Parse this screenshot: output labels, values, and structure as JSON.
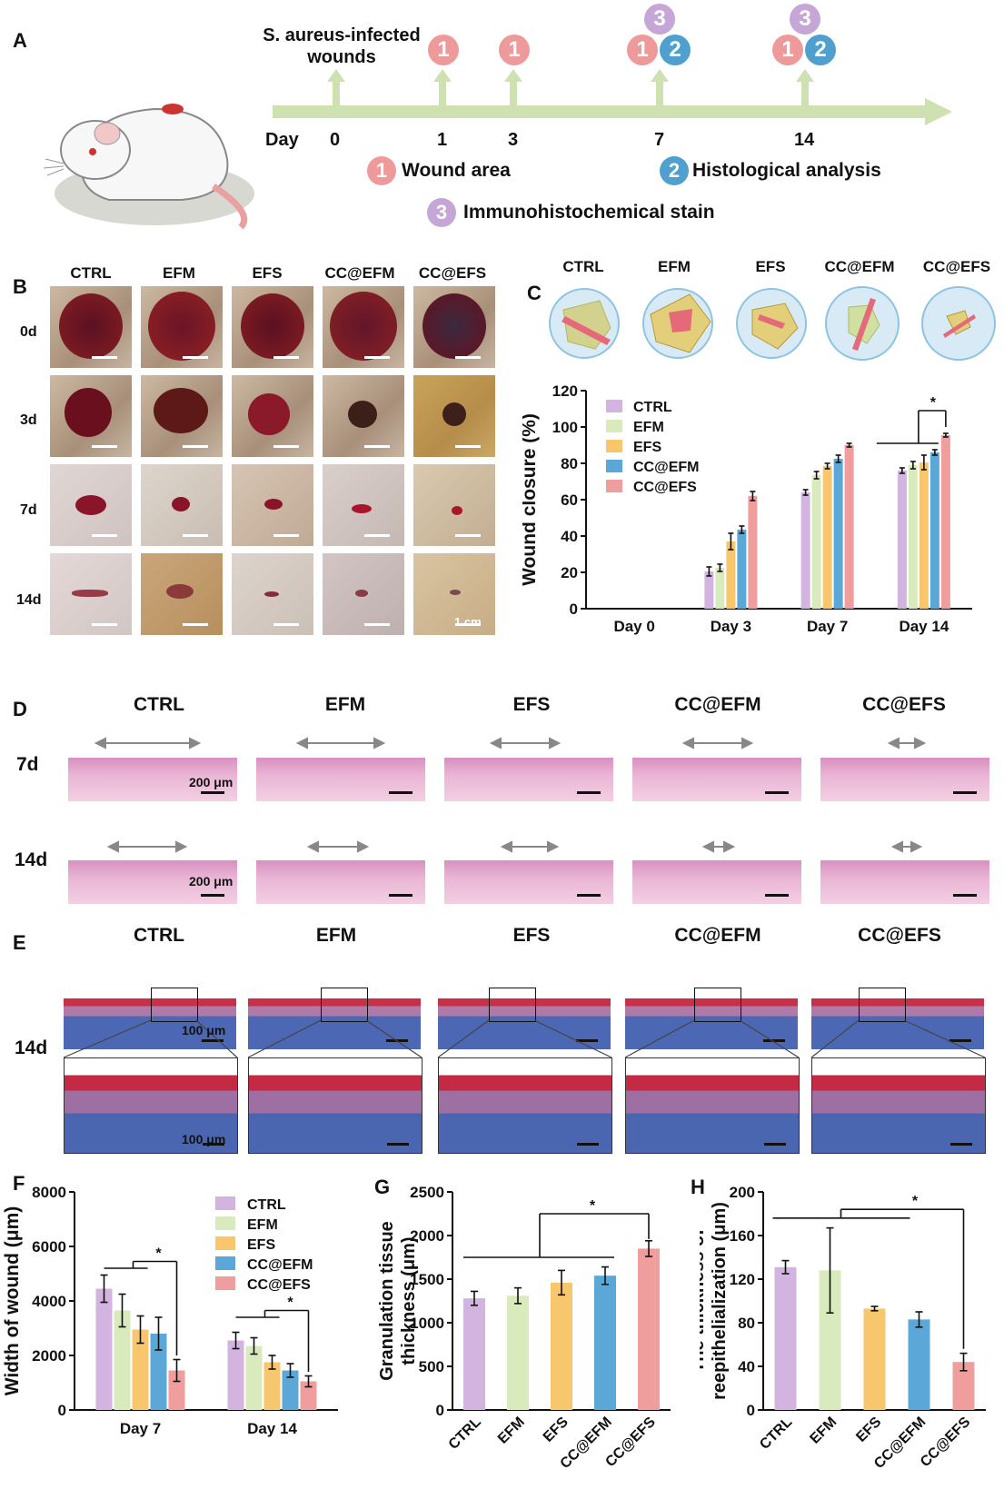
{
  "panel_labels": {
    "A": "A",
    "B": "B",
    "C": "C",
    "D": "D",
    "E": "E",
    "F": "F",
    "G": "G",
    "H": "H"
  },
  "timeline": {
    "start_label": "S. aureus-infected wounds",
    "start_label_line1": "S. aureus-infected",
    "start_label_line2": "wounds",
    "day_label": "Day",
    "days": [
      "0",
      "1",
      "3",
      "7",
      "14"
    ],
    "legend": [
      {
        "num": "1",
        "text": "Wound area",
        "color": "#ee9a9a"
      },
      {
        "num": "2",
        "text": "Histological analysis",
        "color": "#4f9fcf"
      },
      {
        "num": "3",
        "text": "Immunohistochemical stain",
        "color": "#c6a6d6"
      }
    ]
  },
  "groups": [
    "CTRL",
    "EFM",
    "EFS",
    "CC@EFM",
    "CC@EFS"
  ],
  "panel_b": {
    "rows": [
      "0d",
      "3d",
      "7d",
      "14d"
    ],
    "scale_bar": "1 cm"
  },
  "panel_d": {
    "rows": [
      "7d",
      "14d"
    ],
    "scale_bar": "200 μm"
  },
  "panel_e": {
    "row": "14d",
    "scale_bar": "100 μm"
  },
  "colors": {
    "CTRL": "#d3b3e0",
    "EFM": "#d9ebbd",
    "EFS": "#f8c66c",
    "CC@EFM": "#5ba8d8",
    "CC@EFS": "#ef9d9d",
    "timeline": "#cfe1b0"
  },
  "significance": "*",
  "chart_data": [
    {
      "id": "C",
      "type": "bar",
      "ylabel": "Wound closure (%)",
      "ylim": [
        0,
        120
      ],
      "yticks": [
        0,
        20,
        40,
        60,
        80,
        100,
        120
      ],
      "categories": [
        "Day 0",
        "Day 3",
        "Day 7",
        "Day 14"
      ],
      "series": [
        {
          "name": "CTRL",
          "values": [
            0,
            20.5,
            64,
            76
          ],
          "errors": [
            0,
            2.5,
            1.5,
            1.5
          ]
        },
        {
          "name": "EFM",
          "values": [
            0,
            22.5,
            73.5,
            79
          ],
          "errors": [
            0,
            2,
            2,
            2
          ]
        },
        {
          "name": "EFS",
          "values": [
            0,
            37,
            78.5,
            80.5
          ],
          "errors": [
            0,
            4.5,
            1.5,
            4
          ]
        },
        {
          "name": "CC@EFM",
          "values": [
            0,
            43.5,
            82.5,
            86
          ],
          "errors": [
            0,
            2,
            2,
            1.5
          ]
        },
        {
          "name": "CC@EFS",
          "values": [
            0,
            62,
            90,
            95.5
          ],
          "errors": [
            0,
            2.5,
            1,
            1
          ]
        }
      ],
      "legend": "top-left"
    },
    {
      "id": "F",
      "type": "bar",
      "ylabel": "Width of wound (μm)",
      "ylim": [
        0,
        8000
      ],
      "yticks": [
        0,
        2000,
        4000,
        6000,
        8000
      ],
      "categories": [
        "Day 7",
        "Day 14"
      ],
      "series": [
        {
          "name": "CTRL",
          "values": [
            4450,
            2550
          ],
          "errors": [
            500,
            300
          ]
        },
        {
          "name": "EFM",
          "values": [
            3650,
            2350
          ],
          "errors": [
            600,
            300
          ]
        },
        {
          "name": "EFS",
          "values": [
            2950,
            1750
          ],
          "errors": [
            500,
            250
          ]
        },
        {
          "name": "CC@EFM",
          "values": [
            2800,
            1450
          ],
          "errors": [
            600,
            250
          ]
        },
        {
          "name": "CC@EFS",
          "values": [
            1450,
            1050
          ],
          "errors": [
            400,
            200
          ]
        }
      ],
      "legend": "top-right"
    },
    {
      "id": "G",
      "type": "bar",
      "ylabel": "Granulation tissue thickness (μm)",
      "ylabel_line1": "Granulation tissue",
      "ylabel_line2": "thickness (μm)",
      "ylim": [
        0,
        2500
      ],
      "yticks": [
        0,
        500,
        1000,
        1500,
        2000,
        2500
      ],
      "categories": [
        "CTRL",
        "EFM",
        "EFS",
        "CC@EFM",
        "CC@EFS"
      ],
      "values": [
        1280,
        1310,
        1460,
        1540,
        1850
      ],
      "errors": [
        80,
        90,
        140,
        100,
        90
      ]
    },
    {
      "id": "H",
      "type": "bar",
      "ylabel": "The thickness of reepithelialization (μm)",
      "ylabel_line1": "The thickness of",
      "ylabel_line2": "reepithelialization (μm)",
      "ylim": [
        0,
        200
      ],
      "yticks": [
        0,
        40,
        80,
        120,
        160,
        200
      ],
      "categories": [
        "CTRL",
        "EFM",
        "EFS",
        "CC@EFM",
        "CC@EFS"
      ],
      "values": [
        131,
        128,
        93,
        83,
        44
      ],
      "errors": [
        6,
        39,
        2,
        7,
        8
      ]
    }
  ]
}
